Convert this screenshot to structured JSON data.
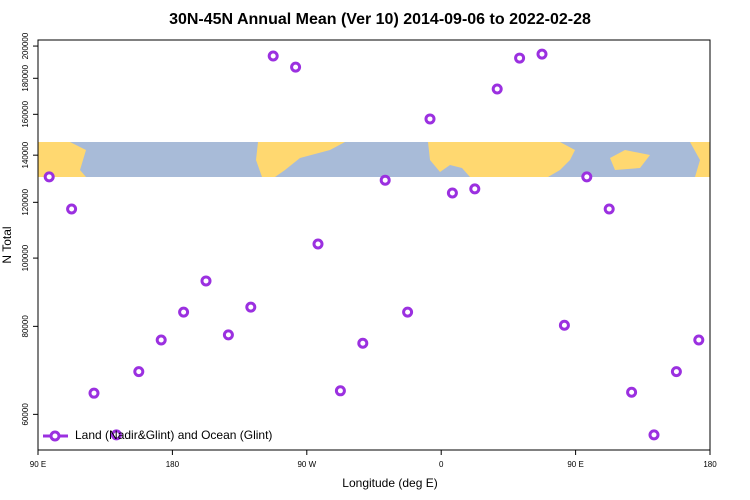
{
  "chart_data": {
    "type": "scatter",
    "title": "30N-45N Annual Mean (Ver 10)   2014-09-06 to 2022-02-28",
    "x_label": "Longitude (deg E)",
    "y_label": "N Total",
    "series": [
      {
        "name": "Land (Nadir&Glint) and Ocean (Glint)",
        "color": "#9b30e0",
        "x": [
          97.5,
          112.5,
          127.5,
          142.5,
          157.5,
          172.5,
          187.5,
          202.5,
          217.5,
          232.5,
          247.5,
          262.5,
          277.5,
          292.5,
          307.5,
          322.5,
          337.5,
          352.5,
          367.5,
          382.5,
          397.5,
          412.5,
          427.5,
          442.5,
          457.5,
          472.5,
          487.5,
          502.5,
          517.5,
          532.5
        ],
        "values": [
          130400,
          117400,
          64300,
          56100,
          69000,
          76500,
          83800,
          92800,
          77800,
          85200,
          193600,
          186700,
          104700,
          64800,
          75700,
          129000,
          83800,
          157600,
          123700,
          125400,
          173800,
          192300,
          194800,
          80300,
          130400,
          117400,
          64500,
          56100,
          69000,
          76500
        ]
      }
    ],
    "xlim": [
      90,
      540
    ],
    "xticks": [
      {
        "value": 90,
        "label": "90 E"
      },
      180,
      {
        "value": 270,
        "label": "90 W"
      },
      {
        "value": 360,
        "label": "0"
      },
      {
        "value": 450,
        "label": "90 E"
      },
      {
        "value": 540,
        "label": "180"
      }
    ],
    "ylim": [
      53400,
      204000
    ],
    "log_y": true,
    "yticks": [
      60000,
      80000,
      100000,
      120000,
      140000,
      160000,
      180000,
      200000
    ],
    "legend": "bottom left"
  }
}
